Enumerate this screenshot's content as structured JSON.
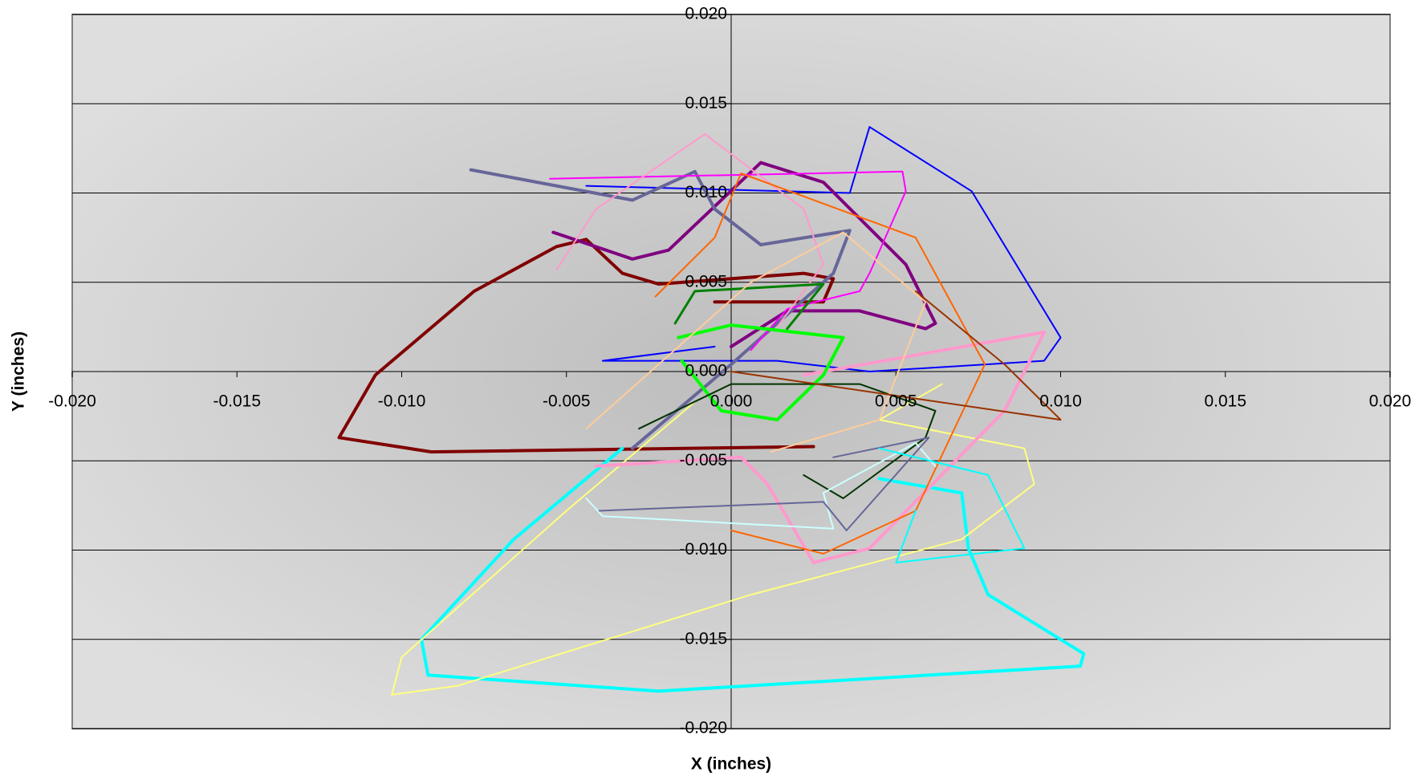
{
  "chart_data": {
    "type": "scatter",
    "x_label": "X (inches)",
    "y_label": "Y (inches)",
    "xlim": [
      -0.02,
      0.02
    ],
    "ylim": [
      -0.02,
      0.02
    ],
    "xticks": [
      {
        "value": -0.02,
        "label": "-0.020"
      },
      {
        "value": -0.015,
        "label": "-0.015"
      },
      {
        "value": -0.01,
        "label": "-0.010"
      },
      {
        "value": -0.005,
        "label": "-0.005"
      },
      {
        "value": 0,
        "label": "0.000"
      },
      {
        "value": 0.005,
        "label": "0.005"
      },
      {
        "value": 0.01,
        "label": "0.010"
      },
      {
        "value": 0.015,
        "label": "0.015"
      },
      {
        "value": 0.02,
        "label": "0.020"
      }
    ],
    "yticks": [
      {
        "value": -0.02,
        "label": "-0.020"
      },
      {
        "value": -0.015,
        "label": "-0.015"
      },
      {
        "value": -0.01,
        "label": "-0.010"
      },
      {
        "value": -0.005,
        "label": "-0.005"
      },
      {
        "value": 0,
        "label": "0.000"
      },
      {
        "value": 0.005,
        "label": "0.005"
      },
      {
        "value": 0.01,
        "label": "0.010"
      },
      {
        "value": 0.015,
        "label": "0.015"
      },
      {
        "value": 0.02,
        "label": "0.020"
      }
    ],
    "grid": true,
    "series": [
      {
        "color": "#800000",
        "line_width": 4,
        "x": [
          0.0025,
          -0.0091,
          -0.0119,
          -0.0108,
          -0.0078,
          -0.0053,
          -0.0044,
          -0.0033,
          -0.0022,
          0.0022,
          0.0031,
          0.0028,
          -0.0005
        ],
        "values": [
          -0.0042,
          -0.0045,
          -0.0037,
          -0.0002,
          0.0045,
          0.007,
          0.0074,
          0.0055,
          0.0049,
          0.0055,
          0.0052,
          0.0039,
          0.0039
        ]
      },
      {
        "color": "#00ffff",
        "line_width": 4,
        "x": [
          -0.0033,
          -0.0066,
          -0.0094,
          -0.0092,
          -0.0022,
          0.0106,
          0.0107,
          0.0078,
          0.0072,
          0.007,
          0.0045
        ],
        "values": [
          -0.0043,
          -0.0094,
          -0.015,
          -0.017,
          -0.0179,
          -0.0165,
          -0.0158,
          -0.0125,
          -0.0099,
          -0.0068,
          -0.006
        ]
      },
      {
        "color": "#ffff80",
        "line_width": 2,
        "x": [
          0.0064,
          0.0045,
          0.0089,
          0.0092,
          0.007,
          0.0006,
          -0.0083,
          -0.0103,
          -0.01,
          -0.005,
          -0.0011
        ],
        "values": [
          -0.0007,
          -0.0027,
          -0.0043,
          -0.0063,
          -0.0094,
          -0.0125,
          -0.0176,
          -0.0181,
          -0.016,
          -0.0078,
          -0.0017
        ]
      },
      {
        "color": "#0000ff",
        "line_width": 2,
        "x": [
          -0.0044,
          0.0036,
          0.0042,
          0.0073,
          0.01,
          0.0095,
          0.0042,
          0.0014,
          -0.0039,
          -0.0005
        ],
        "values": [
          0.0104,
          0.01,
          0.0137,
          0.0101,
          0.0019,
          0.0006,
          0,
          0.0006,
          0.0006,
          0.0014
        ]
      },
      {
        "color": "#800080",
        "line_width": 4,
        "x": [
          -0.0054,
          -0.003,
          -0.0019,
          0.0009,
          0.0028,
          0.0053,
          0.0062,
          0.0059,
          0.0039,
          0.0017,
          0
        ],
        "values": [
          0.0078,
          0.0063,
          0.0068,
          0.0117,
          0.0106,
          0.006,
          0.0027,
          0.0024,
          0.0034,
          0.0034,
          0.0014
        ]
      },
      {
        "color": "#666699",
        "line_width": 4,
        "x": [
          -0.0079,
          -0.003,
          -0.0011,
          -0.0005,
          0.0009,
          0.0036,
          0.0031,
          0,
          -0.003
        ],
        "values": [
          0.0113,
          0.0096,
          0.0112,
          0.0091,
          0.0071,
          0.0079,
          0.0055,
          0.0004,
          -0.0043
        ]
      },
      {
        "color": "#ff00ff",
        "line_width": 2,
        "x": [
          -0.0055,
          0.0052,
          0.0053,
          0.0042,
          0.0039,
          0.0017,
          0.0006
        ],
        "values": [
          0.0108,
          0.0112,
          0.0101,
          0.0055,
          0.0045,
          0.0035,
          0.0012
        ]
      },
      {
        "color": "#ff99cc",
        "line_width": 4,
        "x": [
          0.0022,
          0.0095,
          0.0083,
          0.0042,
          0.0025,
          0.0011,
          0.0003,
          -0.0041
        ],
        "values": [
          -0.0002,
          0.0022,
          -0.0022,
          -0.0099,
          -0.0107,
          -0.0063,
          -0.0048,
          -0.0053
        ]
      },
      {
        "color": "#ff99cc",
        "line_width": 2,
        "x": [
          -0.0053,
          -0.0041,
          -0.0008,
          0.0022,
          0.0028,
          0.0014
        ],
        "values": [
          0.0057,
          0.0091,
          0.0133,
          0.0091,
          0.006,
          0.0025
        ]
      },
      {
        "color": "#ff6600",
        "line_width": 2,
        "x": [
          -0.0023,
          -0.0005,
          0.0003,
          0.0056,
          0.0077,
          0.0056,
          0.0028,
          0
        ],
        "values": [
          0.0042,
          0.0075,
          0.0111,
          0.0075,
          0.0004,
          -0.0078,
          -0.0102,
          -0.0089
        ]
      },
      {
        "color": "#00ff00",
        "line_width": 4,
        "x": [
          -0.0016,
          0,
          0.0034,
          0.0028,
          0.0014,
          -0.0003,
          -0.0015
        ],
        "values": [
          0.0019,
          0.0026,
          0.0019,
          -0.0002,
          -0.0027,
          -0.0022,
          0.0006
        ]
      },
      {
        "color": "#003300",
        "line_width": 2,
        "x": [
          -0.0028,
          0,
          0.0039,
          0.0062,
          0.0059,
          0.0034,
          0.0022
        ],
        "values": [
          -0.0032,
          -0.0007,
          -0.0007,
          -0.0022,
          -0.0037,
          -0.0071,
          -0.0058
        ]
      },
      {
        "color": "#ccffff",
        "line_width": 2,
        "x": [
          -0.0044,
          -0.0039,
          0.0031,
          0.0028,
          0.0056,
          0.0062
        ],
        "values": [
          -0.0071,
          -0.0081,
          -0.0088,
          -0.0068,
          -0.004,
          -0.0053
        ]
      },
      {
        "color": "#666699",
        "line_width": 2,
        "x": [
          -0.004,
          0.0028,
          0.0035,
          0.006,
          0.0031
        ],
        "values": [
          -0.0078,
          -0.0073,
          -0.0089,
          -0.0037,
          -0.0048
        ]
      },
      {
        "color": "#00ffff",
        "line_width": 2,
        "x": [
          0.0045,
          0.0078,
          0.0089,
          0.005,
          0.0056
        ],
        "values": [
          -0.0043,
          -0.0058,
          -0.0099,
          -0.0107,
          -0.0078
        ]
      },
      {
        "color": "#008000",
        "line_width": 3,
        "x": [
          -0.0017,
          -0.0011,
          0.0028,
          0.0017
        ],
        "values": [
          0.0027,
          0.0045,
          0.0049,
          0.0024
        ]
      },
      {
        "color": "#ffcc99",
        "line_width": 2,
        "x": [
          -0.0044,
          0.0006,
          0.0034,
          0.0059,
          0.0045,
          0.0012
        ],
        "values": [
          -0.0032,
          0.005,
          0.0078,
          0.0039,
          -0.0027,
          -0.0045
        ]
      },
      {
        "color": "#993300",
        "line_width": 2,
        "x": [
          0,
          0.01,
          0.0083,
          0.0056
        ],
        "values": [
          0,
          -0.0027,
          0.0004,
          0.0045
        ]
      }
    ]
  }
}
